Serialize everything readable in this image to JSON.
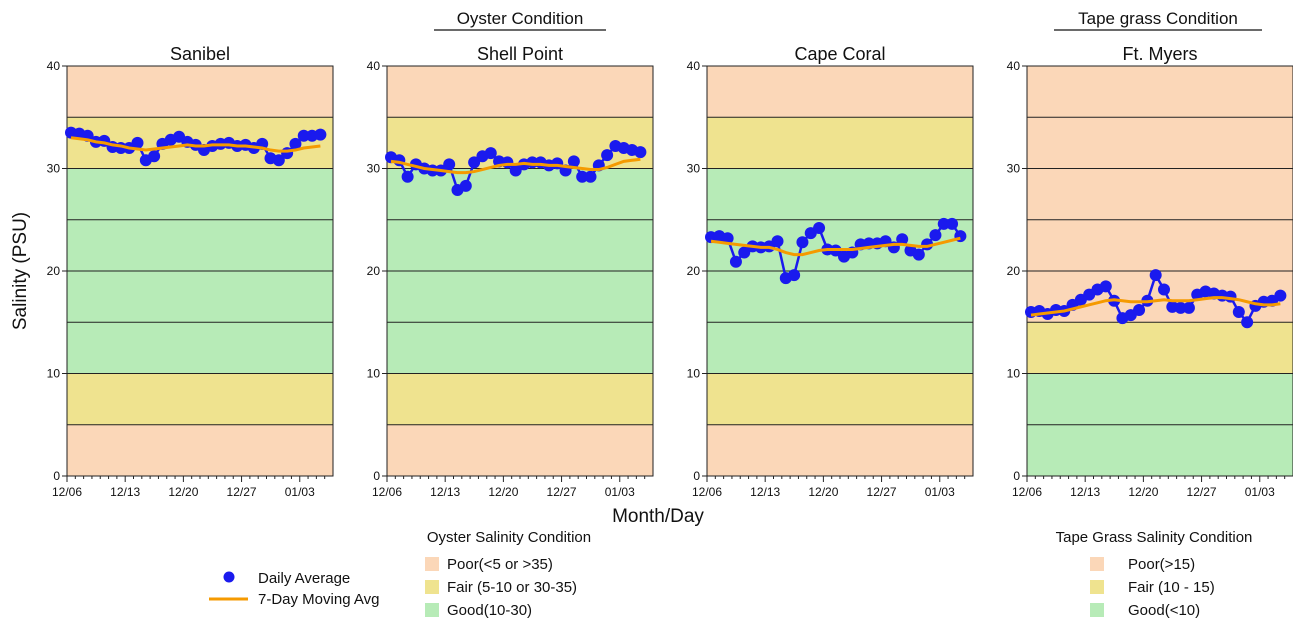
{
  "figure": {
    "group_titles": [
      "Oyster Condition",
      "Tape grass Condition"
    ],
    "ylabel": "Salinity (PSU)",
    "xlabel": "Month/Day",
    "legend_series": {
      "daily": "Daily Average",
      "moving": "7-Day Moving Avg"
    },
    "oyster_legend": {
      "title": "Oyster Salinity Condition",
      "items": [
        "Poor(<5 or >35)",
        "Fair (5-10 or 30-35)",
        "Good(10-30)"
      ]
    },
    "tapegrass_legend": {
      "title": "Tape Grass Salinity Condition",
      "items": [
        "Poor(>15)",
        "Fair (10 - 15)",
        "Good(<10)"
      ]
    },
    "colors": {
      "poor": "#fbd7b8",
      "fair": "#efe38f",
      "good": "#b7ebb7",
      "daily": "#1a1aee",
      "moving": "#f59a00"
    }
  },
  "chart_data": [
    {
      "type": "line",
      "title": "Sanibel",
      "xticks": [
        "12/06",
        "12/13",
        "12/20",
        "12/27",
        "01/03"
      ],
      "ylim": [
        0,
        40
      ],
      "yticks": [
        0,
        10,
        20,
        30,
        40
      ],
      "bands": [
        {
          "from": 0,
          "to": 5,
          "condition": "poor"
        },
        {
          "from": 5,
          "to": 10,
          "condition": "fair"
        },
        {
          "from": 10,
          "to": 30,
          "condition": "good"
        },
        {
          "from": 30,
          "to": 35,
          "condition": "fair"
        },
        {
          "from": 35,
          "to": 40,
          "condition": "poor"
        }
      ],
      "x": [
        "12/06",
        "12/07",
        "12/08",
        "12/09",
        "12/10",
        "12/11",
        "12/12",
        "12/13",
        "12/14",
        "12/15",
        "12/16",
        "12/17",
        "12/18",
        "12/19",
        "12/20",
        "12/21",
        "12/22",
        "12/23",
        "12/24",
        "12/25",
        "12/26",
        "12/27",
        "12/28",
        "12/29",
        "12/30",
        "12/31",
        "01/01",
        "01/02",
        "01/03",
        "01/04",
        "01/05"
      ],
      "series": [
        {
          "name": "Daily Average",
          "values": [
            33.5,
            33.4,
            33.2,
            32.6,
            32.7,
            32.1,
            32.0,
            32.0,
            32.5,
            30.8,
            31.2,
            32.4,
            32.8,
            33.1,
            32.6,
            32.3,
            31.8,
            32.2,
            32.4,
            32.5,
            32.2,
            32.3,
            32.0,
            32.4,
            31.0,
            30.8,
            31.5,
            32.4,
            33.2,
            33.2,
            33.3
          ]
        },
        {
          "name": "7-Day Moving Avg",
          "values": [
            33.0,
            32.9,
            32.8,
            32.6,
            32.5,
            32.3,
            32.2,
            32.0,
            31.9,
            31.8,
            31.9,
            32.0,
            32.1,
            32.2,
            32.3,
            32.2,
            32.2,
            32.3,
            32.3,
            32.3,
            32.2,
            32.2,
            32.1,
            32.0,
            31.8,
            31.7,
            31.7,
            31.8,
            32.0,
            32.1,
            32.2
          ]
        }
      ]
    },
    {
      "type": "line",
      "title": "Shell Point",
      "xticks": [
        "12/06",
        "12/13",
        "12/20",
        "12/27",
        "01/03"
      ],
      "ylim": [
        0,
        40
      ],
      "yticks": [
        0,
        10,
        20,
        30,
        40
      ],
      "bands": [
        {
          "from": 0,
          "to": 5,
          "condition": "poor"
        },
        {
          "from": 5,
          "to": 10,
          "condition": "fair"
        },
        {
          "from": 10,
          "to": 30,
          "condition": "good"
        },
        {
          "from": 30,
          "to": 35,
          "condition": "fair"
        },
        {
          "from": 35,
          "to": 40,
          "condition": "poor"
        }
      ],
      "x": [
        "12/06",
        "12/07",
        "12/08",
        "12/09",
        "12/10",
        "12/11",
        "12/12",
        "12/13",
        "12/14",
        "12/15",
        "12/16",
        "12/17",
        "12/18",
        "12/19",
        "12/20",
        "12/21",
        "12/22",
        "12/23",
        "12/24",
        "12/25",
        "12/26",
        "12/27",
        "12/28",
        "12/29",
        "12/30",
        "12/31",
        "01/01",
        "01/02",
        "01/03",
        "01/04",
        "01/05"
      ],
      "series": [
        {
          "name": "Daily Average",
          "values": [
            31.1,
            30.8,
            29.2,
            30.4,
            30.0,
            29.8,
            29.8,
            30.4,
            27.9,
            28.3,
            30.6,
            31.2,
            31.5,
            30.7,
            30.6,
            29.8,
            30.4,
            30.6,
            30.6,
            30.3,
            30.5,
            29.8,
            30.7,
            29.2,
            29.2,
            30.3,
            31.3,
            32.2,
            32.0,
            31.8,
            31.6
          ]
        },
        {
          "name": "7-Day Moving Avg",
          "values": [
            30.7,
            30.6,
            30.4,
            30.2,
            30.0,
            29.9,
            29.8,
            29.7,
            29.6,
            29.6,
            29.7,
            29.9,
            30.1,
            30.3,
            30.4,
            30.4,
            30.5,
            30.4,
            30.4,
            30.3,
            30.3,
            30.2,
            30.1,
            30.0,
            29.9,
            29.9,
            30.1,
            30.4,
            30.7,
            30.8,
            30.9
          ]
        }
      ]
    },
    {
      "type": "line",
      "title": "Cape Coral",
      "xticks": [
        "12/06",
        "12/13",
        "12/20",
        "12/27",
        "01/03"
      ],
      "ylim": [
        0,
        40
      ],
      "yticks": [
        0,
        10,
        20,
        30,
        40
      ],
      "bands": [
        {
          "from": 0,
          "to": 5,
          "condition": "poor"
        },
        {
          "from": 5,
          "to": 10,
          "condition": "fair"
        },
        {
          "from": 10,
          "to": 30,
          "condition": "good"
        },
        {
          "from": 30,
          "to": 35,
          "condition": "fair"
        },
        {
          "from": 35,
          "to": 40,
          "condition": "poor"
        }
      ],
      "x": [
        "12/06",
        "12/07",
        "12/08",
        "12/09",
        "12/10",
        "12/11",
        "12/12",
        "12/13",
        "12/14",
        "12/15",
        "12/16",
        "12/17",
        "12/18",
        "12/19",
        "12/20",
        "12/21",
        "12/22",
        "12/23",
        "12/24",
        "12/25",
        "12/26",
        "12/27",
        "12/28",
        "12/29",
        "12/30",
        "12/31",
        "01/01",
        "01/02",
        "01/03",
        "01/04",
        "01/05"
      ],
      "series": [
        {
          "name": "Daily Average",
          "values": [
            23.3,
            23.4,
            23.2,
            20.9,
            21.8,
            22.4,
            22.3,
            22.4,
            22.9,
            19.3,
            19.6,
            22.8,
            23.7,
            24.2,
            22.1,
            22.0,
            21.4,
            21.8,
            22.6,
            22.7,
            22.7,
            22.9,
            22.3,
            23.1,
            22.0,
            21.6,
            22.6,
            23.5,
            24.6,
            24.6,
            23.4
          ]
        },
        {
          "name": "7-Day Moving Avg",
          "values": [
            22.9,
            22.8,
            22.7,
            22.6,
            22.5,
            22.4,
            22.3,
            22.3,
            22.1,
            21.8,
            21.6,
            21.6,
            21.8,
            22.0,
            22.1,
            22.1,
            22.1,
            22.1,
            22.2,
            22.3,
            22.4,
            22.5,
            22.6,
            22.6,
            22.5,
            22.4,
            22.4,
            22.6,
            22.8,
            23.0,
            23.2
          ]
        }
      ]
    },
    {
      "type": "line",
      "title": "Ft. Myers",
      "xticks": [
        "12/06",
        "12/13",
        "12/20",
        "12/27",
        "01/03"
      ],
      "ylim": [
        0,
        40
      ],
      "yticks": [
        0,
        10,
        20,
        30,
        40
      ],
      "bands": [
        {
          "from": 0,
          "to": 5,
          "condition": "good"
        },
        {
          "from": 5,
          "to": 10,
          "condition": "good"
        },
        {
          "from": 10,
          "to": 15,
          "condition": "fair"
        },
        {
          "from": 15,
          "to": 20,
          "condition": "poor"
        },
        {
          "from": 20,
          "to": 25,
          "condition": "poor"
        },
        {
          "from": 25,
          "to": 30,
          "condition": "poor"
        },
        {
          "from": 30,
          "to": 35,
          "condition": "poor"
        },
        {
          "from": 35,
          "to": 40,
          "condition": "poor"
        }
      ],
      "x": [
        "12/06",
        "12/07",
        "12/08",
        "12/09",
        "12/10",
        "12/11",
        "12/12",
        "12/13",
        "12/14",
        "12/15",
        "12/16",
        "12/17",
        "12/18",
        "12/19",
        "12/20",
        "12/21",
        "12/22",
        "12/23",
        "12/24",
        "12/25",
        "12/26",
        "12/27",
        "12/28",
        "12/29",
        "12/30",
        "12/31",
        "01/01",
        "01/02",
        "01/03",
        "01/04",
        "01/05"
      ],
      "series": [
        {
          "name": "Daily Average",
          "values": [
            16.0,
            16.1,
            15.8,
            16.2,
            16.1,
            16.7,
            17.2,
            17.7,
            18.2,
            18.5,
            17.1,
            15.4,
            15.7,
            16.2,
            17.1,
            19.6,
            18.2,
            16.5,
            16.4,
            16.4,
            17.7,
            18.0,
            17.8,
            17.6,
            17.5,
            16.0,
            15.0,
            16.6,
            17.0,
            17.1,
            17.6
          ]
        },
        {
          "name": "7-Day Moving Avg",
          "values": [
            15.7,
            15.8,
            15.9,
            16.0,
            16.1,
            16.3,
            16.5,
            16.7,
            16.9,
            17.1,
            17.2,
            17.1,
            17.0,
            17.0,
            17.0,
            17.1,
            17.2,
            17.1,
            17.1,
            17.1,
            17.2,
            17.3,
            17.4,
            17.4,
            17.3,
            17.2,
            17.0,
            16.8,
            16.7,
            16.7,
            16.8
          ]
        }
      ]
    }
  ]
}
